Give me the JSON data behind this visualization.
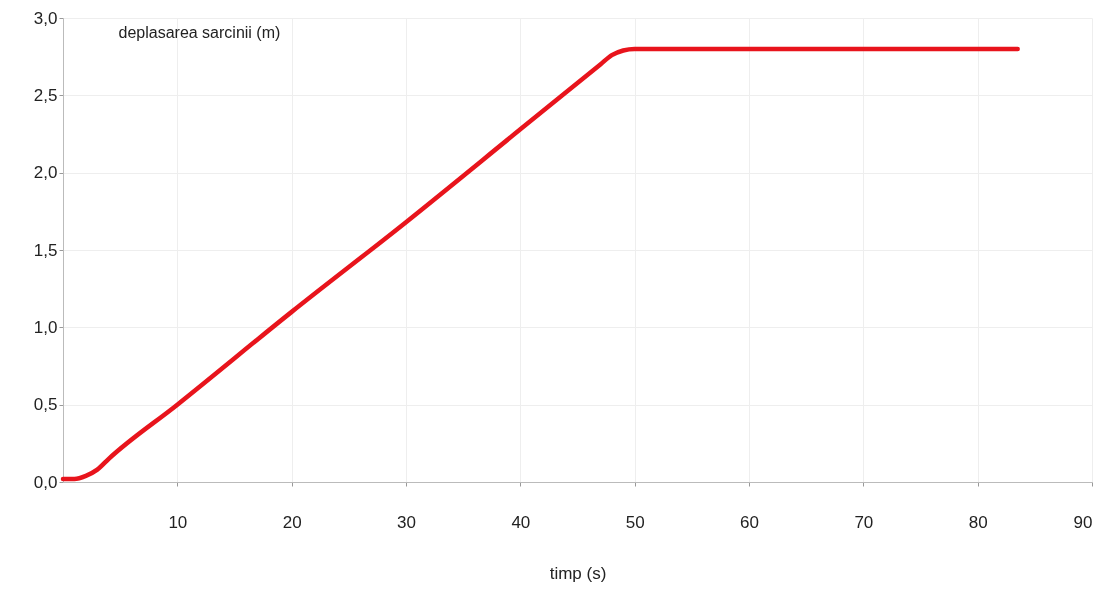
{
  "chart_data": {
    "type": "line",
    "xlabel": "timp (s)",
    "ylabel": "deplasarea sarcinii (m)",
    "x": [
      0,
      1,
      2,
      3,
      4,
      10,
      20,
      30,
      40,
      47,
      48,
      49,
      50,
      83.5
    ],
    "series": [
      {
        "color": "#e8141c",
        "values": [
          0.02,
          0.02,
          0.04,
          0.08,
          0.15,
          0.5,
          1.1,
          1.68,
          2.28,
          2.7,
          2.76,
          2.79,
          2.8,
          2.8
        ]
      }
    ],
    "xlim": [
      0,
      90
    ],
    "xticks": [
      10,
      20,
      30,
      40,
      50,
      60,
      70,
      80,
      90
    ],
    "ylim": [
      0,
      3
    ],
    "yticks": [
      {
        "value": 0,
        "label": "0,0"
      },
      {
        "value": 0.5,
        "label": "0,5"
      },
      {
        "value": 1,
        "label": "1,0"
      },
      {
        "value": 1.5,
        "label": "1,5"
      },
      {
        "value": 2,
        "label": "2,0"
      },
      {
        "value": 2.5,
        "label": "2,5"
      },
      {
        "value": 3,
        "label": "3,0"
      }
    ],
    "grid": true
  }
}
